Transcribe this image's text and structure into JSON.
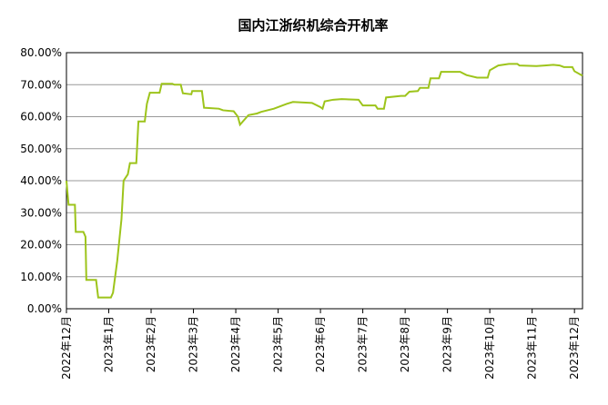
{
  "chart_data": {
    "type": "line",
    "title": "国内江浙织机综合开机率",
    "x": [
      0,
      0.05,
      0.2,
      0.22,
      0.4,
      0.45,
      0.47,
      0.7,
      0.75,
      1.05,
      1.1,
      1.2,
      1.3,
      1.35,
      1.45,
      1.5,
      1.65,
      1.7,
      1.85,
      1.9,
      1.97,
      2.2,
      2.25,
      2.5,
      2.55,
      2.7,
      2.75,
      2.95,
      2.97,
      3.2,
      3.25,
      3.6,
      3.7,
      3.95,
      4.05,
      4.1,
      4.3,
      4.5,
      4.6,
      4.9,
      5.0,
      5.2,
      5.35,
      5.8,
      6.0,
      6.05,
      6.1,
      6.3,
      6.5,
      6.9,
      7.0,
      7.3,
      7.35,
      7.5,
      7.55,
      7.9,
      8.0,
      8.1,
      8.3,
      8.35,
      8.55,
      8.6,
      8.8,
      8.85,
      9.3,
      9.45,
      9.7,
      9.95,
      10.0,
      10.2,
      10.45,
      10.65,
      10.7,
      11.1,
      11.3,
      11.5,
      11.65,
      11.75,
      11.95,
      12.0,
      12.19
    ],
    "series": [
      {
        "name": "开机率",
        "color": "#9dc41b",
        "values": [
          40,
          32.5,
          32.5,
          24,
          24,
          22.5,
          9,
          9,
          3.5,
          3.5,
          5,
          15,
          28,
          40,
          42,
          45.5,
          45.5,
          58.5,
          58.5,
          64,
          67.5,
          67.5,
          70.3,
          70.3,
          70,
          70,
          67.3,
          67,
          68,
          68,
          62.8,
          62.5,
          62,
          61.7,
          60,
          57.5,
          60.5,
          61,
          61.5,
          62.5,
          63,
          64,
          64.6,
          64.3,
          63,
          62.5,
          64.8,
          65.3,
          65.5,
          65.3,
          63.5,
          63.5,
          62.5,
          62.5,
          66,
          66.5,
          66.5,
          67.8,
          68,
          69,
          69,
          72,
          72,
          74,
          74,
          73,
          72.2,
          72.2,
          74.5,
          76,
          76.5,
          76.5,
          76,
          75.8,
          76,
          76.2,
          76,
          75.5,
          75.5,
          74.2,
          72.8
        ]
      }
    ],
    "xlim": [
      0,
      12.19
    ],
    "xticks": [
      {
        "value": 0,
        "label": "2022年12月"
      },
      {
        "value": 1,
        "label": "2023年1月"
      },
      {
        "value": 2,
        "label": "2023年2月"
      },
      {
        "value": 3,
        "label": "2023年3月"
      },
      {
        "value": 4,
        "label": "2023年4月"
      },
      {
        "value": 5,
        "label": "2023年5月"
      },
      {
        "value": 6,
        "label": "2023年6月"
      },
      {
        "value": 7,
        "label": "2023年7月"
      },
      {
        "value": 8,
        "label": "2023年8月"
      },
      {
        "value": 9,
        "label": "2023年9月"
      },
      {
        "value": 10,
        "label": "2023年10月"
      },
      {
        "value": 11,
        "label": "2023年11月"
      },
      {
        "value": 12,
        "label": "2023年12月"
      }
    ],
    "ylim": [
      0,
      80
    ],
    "yticks": [
      {
        "value": 0,
        "label": "0.00%"
      },
      {
        "value": 10,
        "label": "10.00%"
      },
      {
        "value": 20,
        "label": "20.00%"
      },
      {
        "value": 30,
        "label": "30.00%"
      },
      {
        "value": 40,
        "label": "40.00%"
      },
      {
        "value": 50,
        "label": "50.00%"
      },
      {
        "value": 60,
        "label": "60.00%"
      },
      {
        "value": 70,
        "label": "70.00%"
      },
      {
        "value": 80,
        "label": "80.00%"
      }
    ],
    "grid": true
  }
}
